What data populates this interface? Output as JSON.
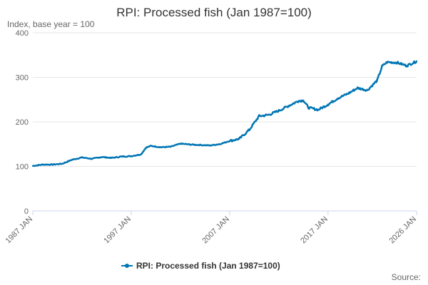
{
  "chart_data": {
    "type": "line",
    "title": "RPI: Processed fish (Jan 1987=100)",
    "subtitle": "Index, base year = 100",
    "xlabel": "",
    "ylabel": "Index, base year = 100",
    "xlim": [
      1987.0,
      2026.0
    ],
    "ylim": [
      0,
      400
    ],
    "yticks": [
      "0",
      "100",
      "200",
      "300",
      "400"
    ],
    "xticks": [
      {
        "label": "1987 JAN",
        "value": 1987.0
      },
      {
        "label": "1997 JAN",
        "value": 1997.0
      },
      {
        "label": "2007 JAN",
        "value": 2007.0
      },
      {
        "label": "2017 JAN",
        "value": 2017.0
      },
      {
        "label": "2026 JAN",
        "value": 2026.0
      }
    ],
    "grid": true,
    "legend_position": "bottom",
    "color": "#0075b3",
    "series": [
      {
        "name": "RPI: Processed fish (Jan 1987=100)",
        "x": [
          1987.0,
          1988.0,
          1989.0,
          1990.0,
          1991.0,
          1992.0,
          1993.0,
          1994.0,
          1995.0,
          1996.0,
          1997.0,
          1998.0,
          1998.5,
          1999.0,
          2000.0,
          2001.0,
          2002.0,
          2003.0,
          2004.0,
          2005.0,
          2006.0,
          2007.0,
          2008.0,
          2009.0,
          2010.0,
          2010.5,
          2011.0,
          2012.0,
          2013.0,
          2014.0,
          2014.5,
          2015.0,
          2016.0,
          2017.0,
          2018.0,
          2019.0,
          2020.0,
          2021.0,
          2022.0,
          2022.5,
          2023.0,
          2024.0,
          2025.0,
          2026.0
        ],
        "values": [
          101,
          104,
          104,
          106,
          115,
          120,
          117,
          121,
          119,
          122,
          123,
          127,
          142,
          146,
          143,
          144,
          151,
          149,
          148,
          147,
          150,
          157,
          162,
          182,
          213,
          214,
          216,
          225,
          236,
          247,
          248,
          232,
          227,
          239,
          253,
          263,
          276,
          271,
          293,
          325,
          334,
          333,
          326,
          336
        ]
      }
    ]
  },
  "source_label": "Source:"
}
